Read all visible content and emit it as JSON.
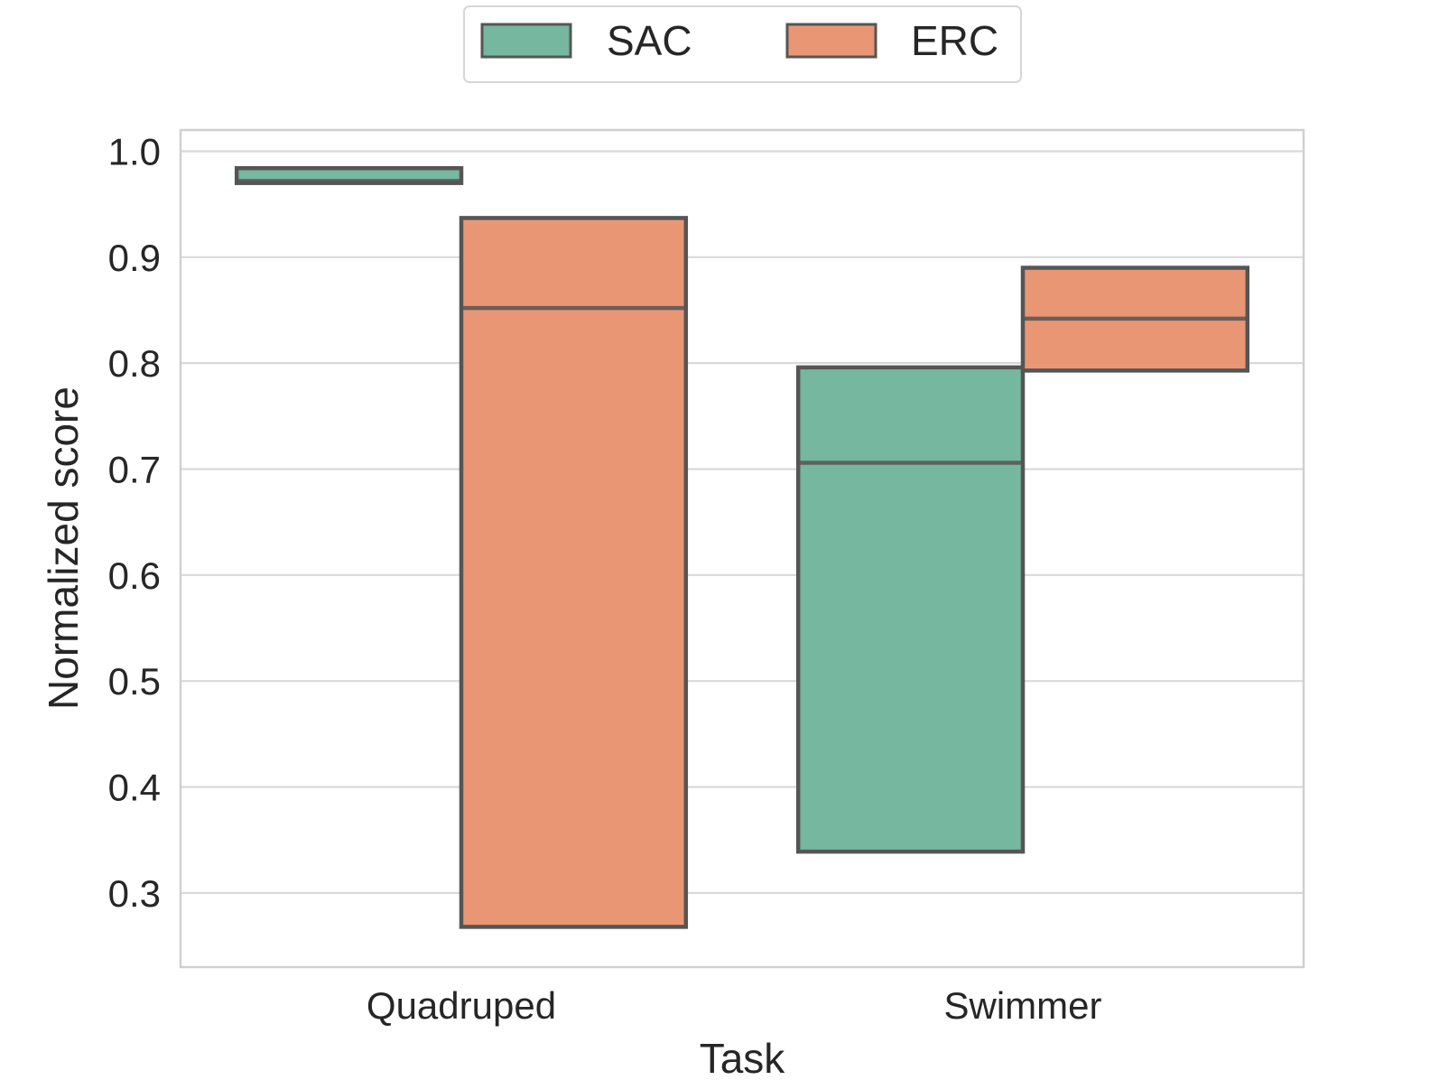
{
  "chart_data": {
    "type": "bar",
    "subtype": "floating-range-with-median",
    "xlabel": "Task",
    "ylabel": "Normalized score",
    "ylim": [
      0.23,
      1.02
    ],
    "yticks": [
      0.3,
      0.4,
      0.5,
      0.6,
      0.7,
      0.8,
      0.9,
      1.0
    ],
    "yticklabels": [
      "0.3",
      "0.4",
      "0.5",
      "0.6",
      "0.7",
      "0.8",
      "0.9",
      "1.0"
    ],
    "categories": [
      "Quadruped",
      "Swimmer"
    ],
    "grid": "horizontal",
    "legend_position": "top-center",
    "series": [
      {
        "name": "SAC",
        "color": "#76b7a0",
        "bars": [
          {
            "category": "Quadruped",
            "low": 0.97,
            "high": 0.984,
            "median": 0.972
          },
          {
            "category": "Swimmer",
            "low": 0.339,
            "high": 0.796,
            "median": 0.706
          }
        ]
      },
      {
        "name": "ERC",
        "color": "#e99675",
        "bars": [
          {
            "category": "Quadruped",
            "low": 0.268,
            "high": 0.937,
            "median": 0.852
          },
          {
            "category": "Swimmer",
            "low": 0.793,
            "high": 0.89,
            "median": 0.842
          }
        ]
      }
    ],
    "edge_color": "#555555",
    "grid_color": "#d9d9d9"
  }
}
